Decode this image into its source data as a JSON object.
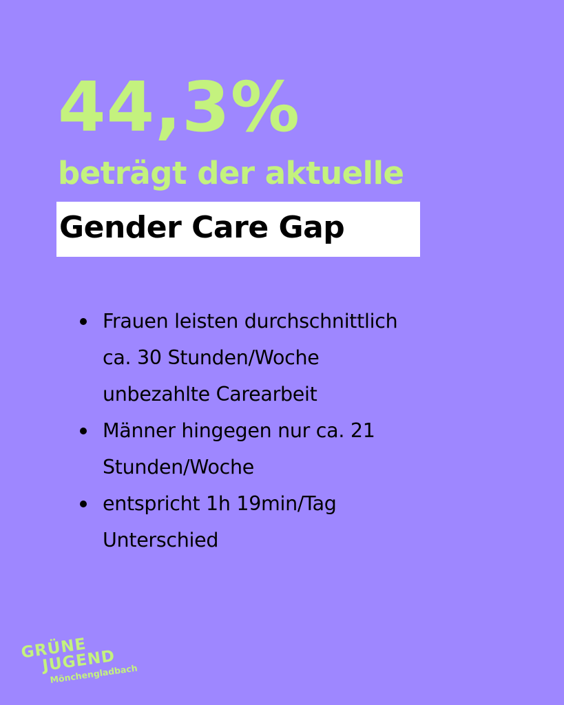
{
  "colors": {
    "background": "#9e87ff",
    "accent_green": "#c4f27e",
    "highlight_bg": "#ffffff",
    "text": "#000000"
  },
  "headline": {
    "value": "44,3%",
    "subline": "beträgt der aktuelle",
    "highlight": "Gender Care Gap"
  },
  "bullets": [
    {
      "lines": [
        "Frauen leisten durchschnittlich",
        "ca. 30 Stunden/Woche",
        "unbezahlte Carearbeit"
      ]
    },
    {
      "lines": [
        "Männer hingegen nur ca. 21",
        "Stunden/Woche"
      ]
    },
    {
      "lines": [
        "entspricht 1h 19min/Tag",
        "Unterschied"
      ]
    }
  ],
  "logo": {
    "line1": "GRÜNE",
    "line2": "JUGEND",
    "line3": "Mönchengladbach"
  }
}
